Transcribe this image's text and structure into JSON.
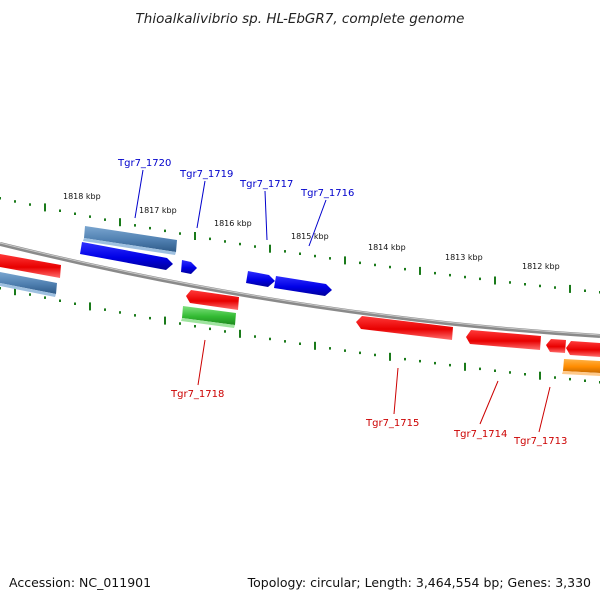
{
  "title": "Thioalkalivibrio sp. HL-EbGR7, complete genome",
  "footer": {
    "accession": "Accession: NC_011901",
    "summary": "Topology: circular; Length: 3,464,554 bp; Genes: 3,330"
  },
  "kbp_ticks_upper": [
    "1818 kbp",
    "1817 kbp",
    "1816 kbp",
    "1815 kbp",
    "1814 kbp",
    "1813 kbp",
    "1812 kbp"
  ],
  "gene_labels": {
    "top": [
      "Tgr7_1720",
      "Tgr7_1719",
      "Tgr7_1717",
      "Tgr7_1716"
    ],
    "bottom": [
      "Tgr7_1718",
      "Tgr7_1715",
      "Tgr7_1714",
      "Tgr7_1713"
    ]
  },
  "colors": {
    "forward_cds": "#0000ee",
    "reverse_cds": "#ee0000",
    "gene_track": "#4f7fb0",
    "green_feature": "#33bb33",
    "orange_feature": "#ff8c00",
    "backbone": "#888888",
    "tick_marks": "#1a7a1a"
  }
}
